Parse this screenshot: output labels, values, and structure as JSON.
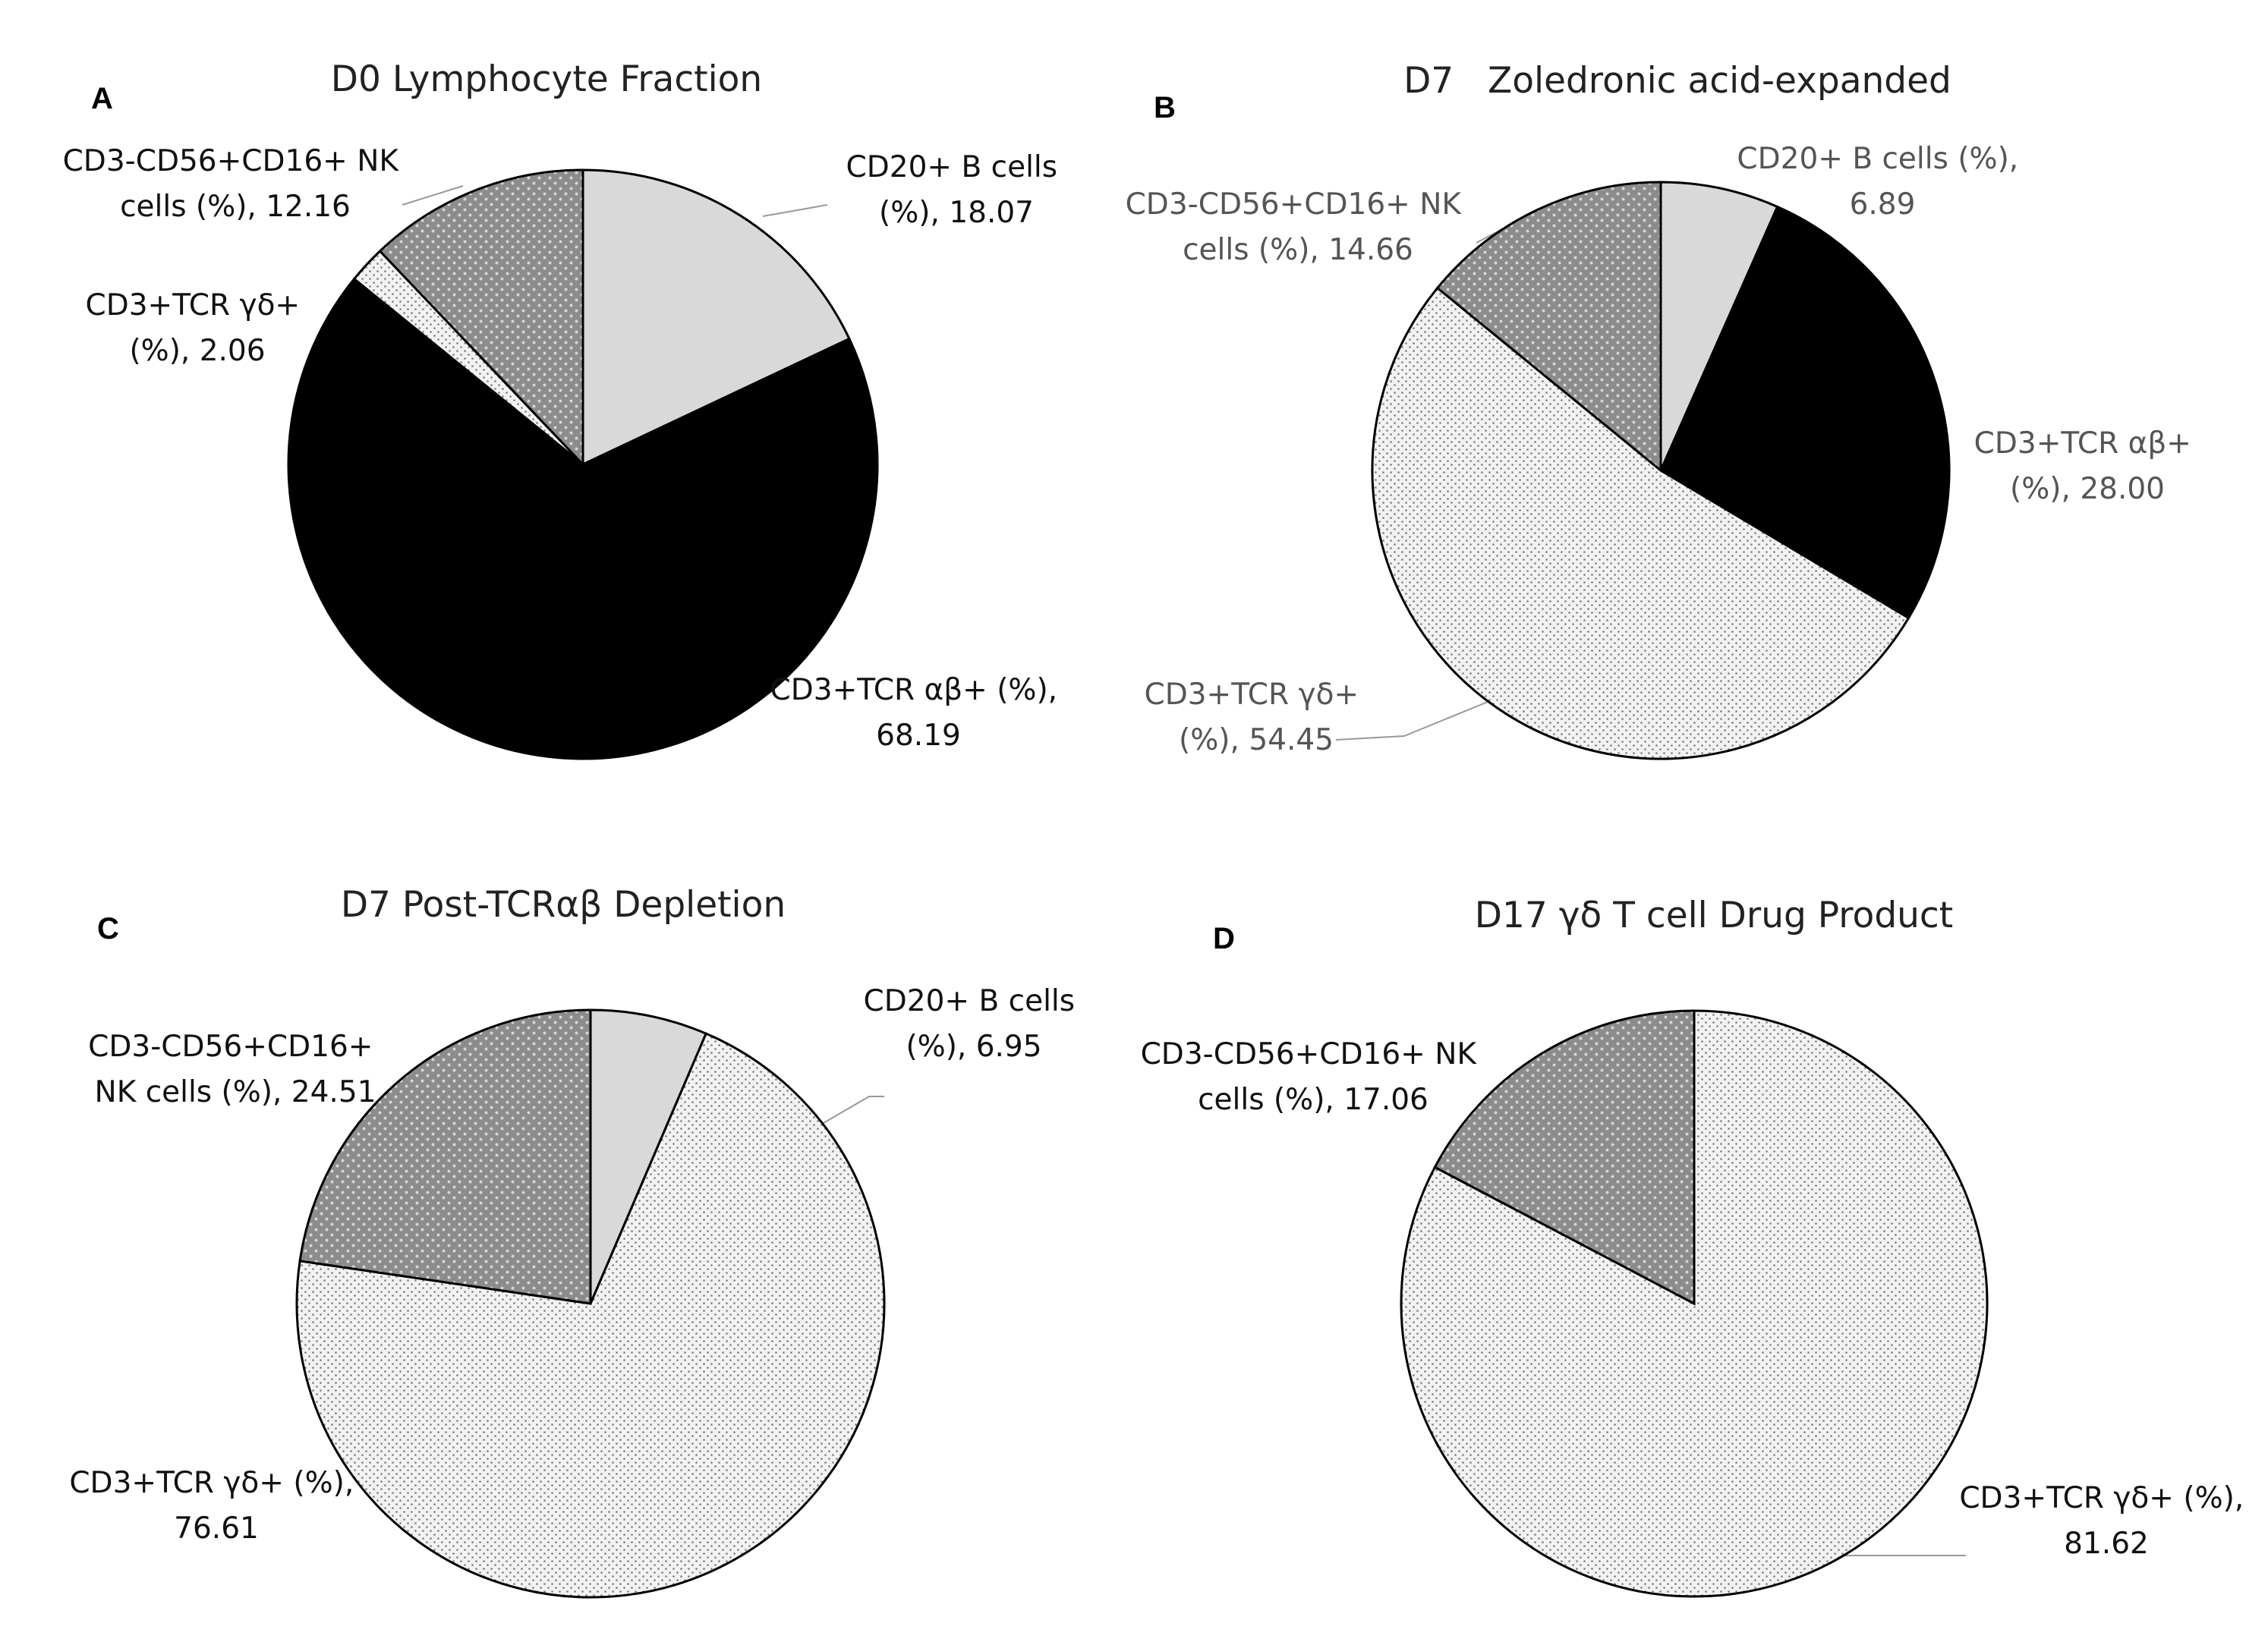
{
  "figure": {
    "colors": {
      "b_cells": "#d9d9d9",
      "tcr_ab": "#000000",
      "tcr_gd": "#f2f2f2",
      "nk_cells": "#8c8c8c"
    }
  },
  "chart_data": [
    {
      "type": "pie",
      "panel": "A",
      "title": "D0 Lymphocyte Fraction",
      "slices": [
        {
          "name": "CD20+ B cells (%)",
          "value": 18.07,
          "label_lines": [
            "CD20+ B cells",
            "(%), 18.07"
          ]
        },
        {
          "name": "CD3+TCR αβ+ (%)",
          "value": 68.19,
          "label_lines": [
            "CD3+TCR αβ+ (%),",
            "68.19"
          ]
        },
        {
          "name": "CD3+TCR γδ+ (%)",
          "value": 2.06,
          "label_lines": [
            "CD3+TCR γδ+",
            "(%), 2.06"
          ]
        },
        {
          "name": "CD3-CD56+CD16+ NK cells (%)",
          "value": 12.16,
          "label_lines": [
            "CD3-CD56+CD16+ NK",
            "cells (%), 12.16"
          ]
        }
      ]
    },
    {
      "type": "pie",
      "panel": "B",
      "title": "D7   Zoledronic acid-expanded",
      "slices": [
        {
          "name": "CD20+ B cells (%)",
          "value": 6.89,
          "label_lines": [
            "CD20+ B cells (%),",
            "6.89"
          ]
        },
        {
          "name": "CD3+TCR αβ+ (%)",
          "value": 28.0,
          "label_lines": [
            "CD3+TCR αβ+",
            "(%), 28.00"
          ]
        },
        {
          "name": "CD3+TCR γδ+ (%)",
          "value": 54.45,
          "label_lines": [
            "CD3+TCR γδ+",
            "(%), 54.45"
          ]
        },
        {
          "name": "CD3-CD56+CD16+ NK cells (%)",
          "value": 14.66,
          "label_lines": [
            "CD3-CD56+CD16+ NK",
            "cells (%), 14.66"
          ]
        }
      ]
    },
    {
      "type": "pie",
      "panel": "C",
      "title": "D7 Post-TCRαβ Depletion",
      "slices": [
        {
          "name": "CD20+ B cells (%)",
          "value": 6.95,
          "label_lines": [
            "CD20+ B cells",
            "(%), 6.95"
          ]
        },
        {
          "name": "CD3+TCR γδ+ (%)",
          "value": 76.61,
          "label_lines": [
            "CD3+TCR γδ+ (%),",
            "76.61"
          ]
        },
        {
          "name": "CD3-CD56+CD16+ NK cells (%)",
          "value": 24.51,
          "label_lines": [
            "CD3-CD56+CD16+",
            "NK cells (%), 24.51"
          ]
        }
      ]
    },
    {
      "type": "pie",
      "panel": "D",
      "title": "D17 γδ T cell Drug Product",
      "slices": [
        {
          "name": "CD3+TCR γδ+ (%)",
          "value": 81.62,
          "label_lines": [
            "CD3+TCR γδ+ (%),",
            "81.62"
          ]
        },
        {
          "name": "CD3-CD56+CD16+ NK cells (%)",
          "value": 17.06,
          "label_lines": [
            "CD3-CD56+CD16+ NK",
            "cells (%), 17.06"
          ]
        }
      ]
    }
  ]
}
